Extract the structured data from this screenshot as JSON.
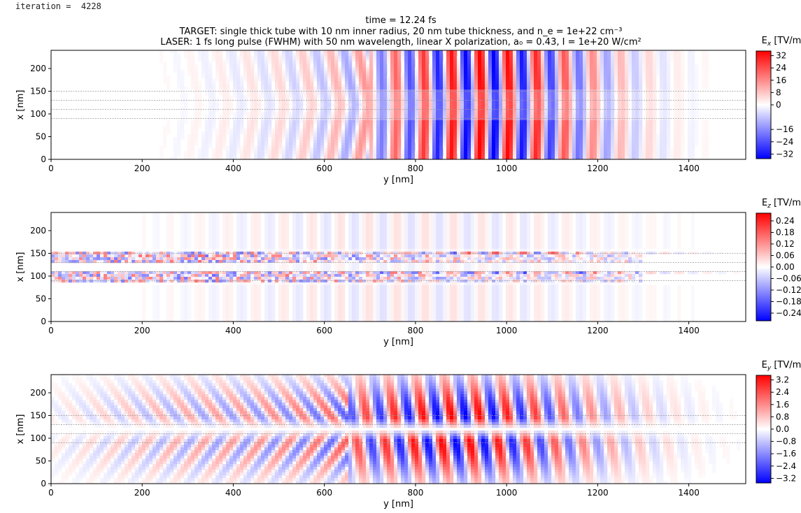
{
  "iteration_text": "iteration =  4228",
  "title": {
    "line1": "time = 12.24 fs",
    "line2": "TARGET: single thick tube with 10 nm inner radius, 20 nm tube thickness, and n_e = 1e+22 cm⁻³",
    "line3": "LASER: 1 fs long pulse (FWHM) with 50 nm wavelength, linear X polarization, a₀ = 0.43, I = 1e+20 W/cm²"
  },
  "colors": {
    "positive": "#ff0000",
    "neutral": "#ffffff",
    "negative": "#0000ff",
    "tube_line": "#999999"
  },
  "chart_data": [
    {
      "type": "heatmap",
      "field": "Ex",
      "colorbar_label": "E_x [TV/m]",
      "xlabel": "y [nm]",
      "ylabel": "x [nm]",
      "xlim": [
        0,
        1525
      ],
      "ylim": [
        0,
        240
      ],
      "xticks": [
        "0",
        "200",
        "400",
        "600",
        "800",
        "1000",
        "1200",
        "1400"
      ],
      "yticks": [
        "0",
        "50",
        "100",
        "150",
        "200"
      ],
      "cbar_range": [
        -35,
        35
      ],
      "cbar_ticks": [
        "32",
        "24",
        "16",
        "8",
        "0",
        "−16",
        "−24",
        "−32"
      ],
      "cbar_tick_values": [
        32,
        24,
        16,
        8,
        0,
        -16,
        -24,
        -32
      ],
      "tube_boundaries_x": [
        90,
        110,
        130,
        150
      ],
      "pulse_center_y": 960,
      "pulse_width": 260,
      "wavelength": 62,
      "pattern": "ex"
    },
    {
      "type": "heatmap",
      "field": "Ez",
      "colorbar_label": "E_z [TV/m]",
      "xlabel": "y [nm]",
      "ylabel": "x [nm]",
      "xlim": [
        0,
        1525
      ],
      "ylim": [
        0,
        240
      ],
      "xticks": [
        "0",
        "200",
        "400",
        "600",
        "800",
        "1000",
        "1200",
        "1400"
      ],
      "yticks": [
        "0",
        "50",
        "100",
        "150",
        "200"
      ],
      "cbar_range": [
        -0.28,
        0.28
      ],
      "cbar_ticks": [
        "0.24",
        "0.18",
        "0.12",
        "0.06",
        "0.00",
        "−0.06",
        "−0.12",
        "−0.18",
        "−0.24"
      ],
      "cbar_tick_values": [
        0.24,
        0.18,
        0.12,
        0.06,
        0.0,
        -0.06,
        -0.12,
        -0.18,
        -0.24
      ],
      "tube_boundaries_x": [
        90,
        110,
        130,
        150
      ],
      "pulse_center_y": 1000,
      "pulse_width": 300,
      "wavelength": 62,
      "pattern": "ez"
    },
    {
      "type": "heatmap",
      "field": "Ey",
      "colorbar_label": "E_y [TV/m]",
      "xlabel": "y [nm]",
      "ylabel": "x [nm]",
      "xlim": [
        0,
        1525
      ],
      "ylim": [
        0,
        240
      ],
      "xticks": [
        "0",
        "200",
        "400",
        "600",
        "800",
        "1000",
        "1200",
        "1400"
      ],
      "yticks": [
        "0",
        "50",
        "100",
        "150",
        "200"
      ],
      "cbar_range": [
        -3.5,
        3.5
      ],
      "cbar_ticks": [
        "3.2",
        "2.4",
        "1.6",
        "0.8",
        "0.0",
        "−0.8",
        "−1.6",
        "−2.4",
        "−3.2"
      ],
      "cbar_tick_values": [
        3.2,
        2.4,
        1.6,
        0.8,
        0.0,
        -0.8,
        -1.6,
        -2.4,
        -3.2
      ],
      "tube_boundaries_x": [
        90,
        110,
        130,
        150
      ],
      "pulse_center_y": 900,
      "pulse_width": 320,
      "wavelength": 62,
      "pattern": "ey"
    }
  ]
}
